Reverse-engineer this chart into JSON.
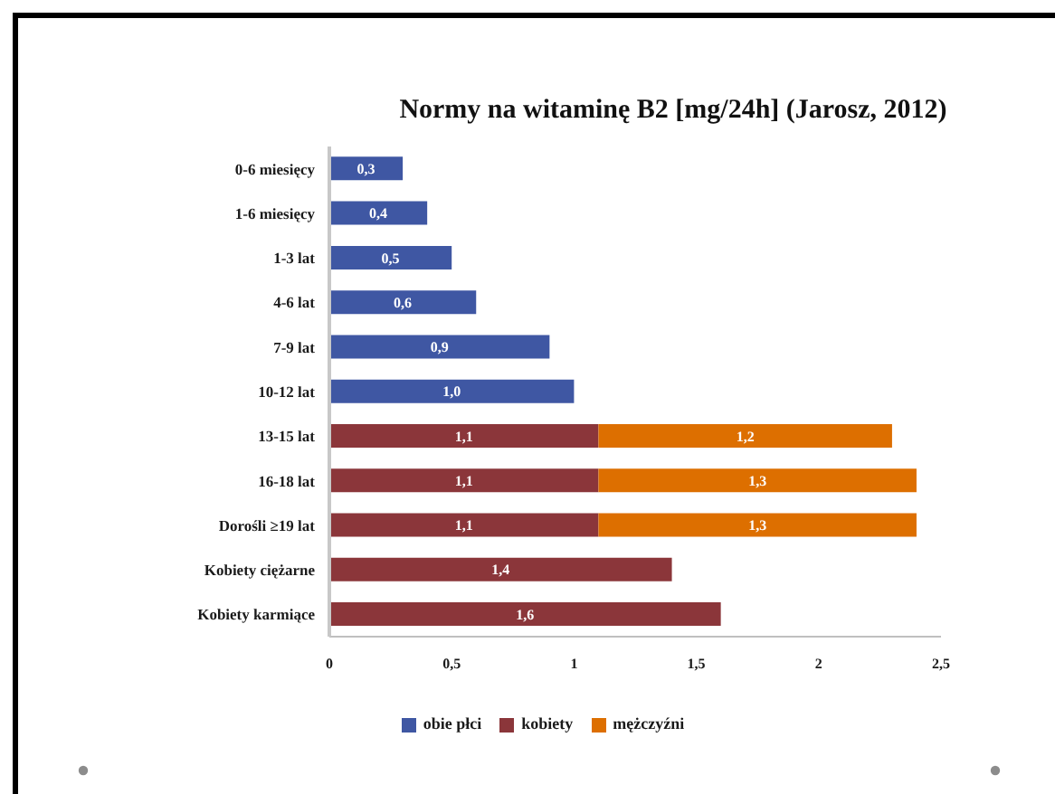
{
  "chart_data": {
    "type": "bar",
    "orientation": "horizontal",
    "stacked": true,
    "title": "Normy na witaminę B2 [mg/24h] (Jarosz, 2012)",
    "categories": [
      "0-6 miesięcy",
      "1-6 miesięcy",
      "1-3 lat",
      "4-6 lat",
      "7-9 lat",
      "10-12 lat",
      "13-15 lat",
      "16-18 lat",
      "Dorośli ≥19 lat",
      "Kobiety ciężarne",
      "Kobiety karmiące"
    ],
    "series": [
      {
        "name": "obie płci",
        "color": "#3f57a3",
        "values": [
          0.3,
          0.4,
          0.5,
          0.6,
          0.9,
          1.0,
          null,
          null,
          null,
          null,
          null
        ],
        "value_labels": [
          "0,3",
          "0,4",
          "0,5",
          "0,6",
          "0,9",
          "1,0",
          null,
          null,
          null,
          null,
          null
        ]
      },
      {
        "name": "kobiety",
        "color": "#8b363a",
        "values": [
          null,
          null,
          null,
          null,
          null,
          null,
          1.1,
          1.1,
          1.1,
          1.4,
          1.6
        ],
        "value_labels": [
          null,
          null,
          null,
          null,
          null,
          null,
          "1,1",
          "1,1",
          "1,1",
          "1,4",
          "1,6"
        ]
      },
      {
        "name": "mężczyźni",
        "color": "#dd6f00",
        "values": [
          null,
          null,
          null,
          null,
          null,
          null,
          1.2,
          1.3,
          1.3,
          null,
          null
        ],
        "value_labels": [
          null,
          null,
          null,
          null,
          null,
          null,
          "1,2",
          "1,3",
          "1,3",
          null,
          null
        ]
      }
    ],
    "xlim": [
      0,
      2.5
    ],
    "xticks": [
      0,
      {
        "value": 0.5,
        "label": "0,5"
      },
      1,
      {
        "value": 1.5,
        "label": "1,5"
      },
      2,
      {
        "value": 2.5,
        "label": "2,5"
      }
    ],
    "legend": "bottom"
  }
}
